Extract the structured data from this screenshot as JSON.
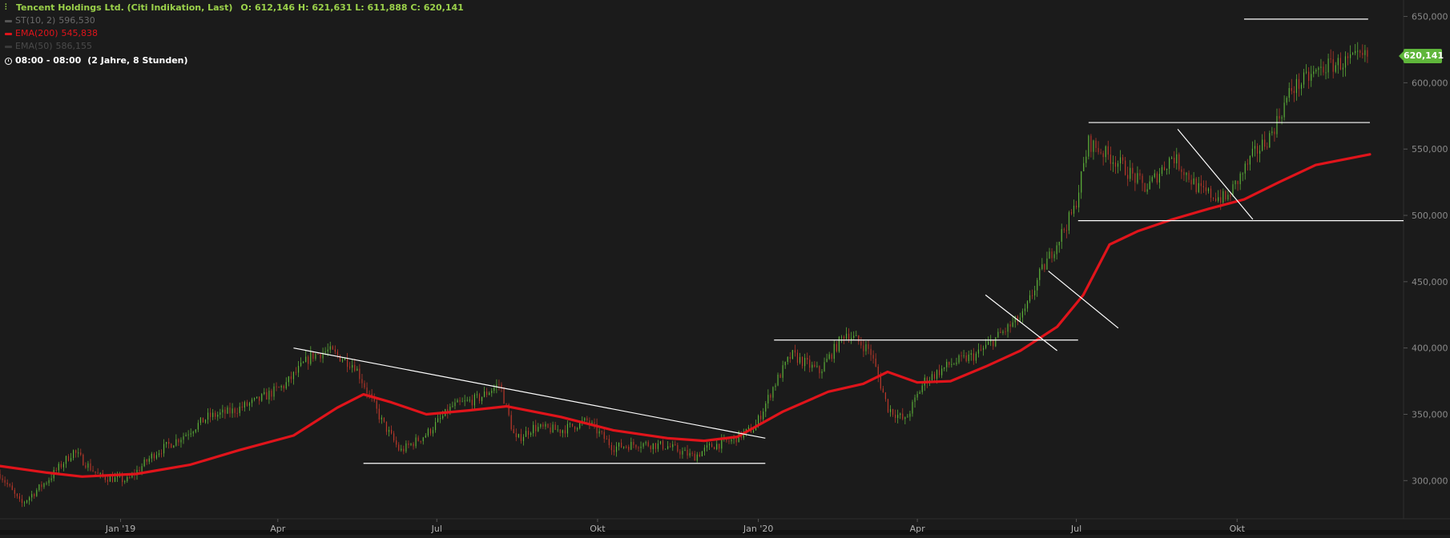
{
  "header": {
    "title": "Tencent Holdings Ltd. (Citi Indikation, Last)",
    "ohlc": "O: 612,146  H: 621,631  L: 611,888  C: 620,141",
    "st_label": "ST(10, 2)",
    "st_value": "596,530",
    "ema200_label": "EMA(200)",
    "ema200_value": "545,838",
    "ema50_label": "EMA(50)",
    "ema50_value": "586,155",
    "time_range": "08:00 - 08:00",
    "time_desc": "(2 Jahre, 8 Stunden)"
  },
  "colors": {
    "background": "#1b1b1b",
    "ema200": "#e0141b",
    "candle_up": "#5fb63b",
    "candle_down": "#c0392b",
    "trendline": "#ffffff",
    "last_price": "#5fb63b",
    "grid_axis": "#2c2c2c"
  },
  "last_price_label": "620,141",
  "chart_data": {
    "type": "line",
    "title": "Tencent Holdings Ltd. (Citi Indikation, Last)",
    "xlabel": "",
    "ylabel": "",
    "ylim": [
      270,
      660
    ],
    "x_ticks": [
      "Jan '19",
      "Apr",
      "Jul",
      "Okt",
      "Jan '20",
      "Apr",
      "Jul",
      "Okt"
    ],
    "x_tick_dates": [
      "2019-01-01",
      "2019-04-01",
      "2019-07-01",
      "2019-10-01",
      "2020-01-01",
      "2020-04-01",
      "2020-07-01",
      "2020-10-01"
    ],
    "y_ticks": [
      "300,000",
      "350,000",
      "400,000",
      "450,000",
      "500,000",
      "550,000",
      "600,000",
      "650,000"
    ],
    "y_tick_values": [
      300,
      350,
      400,
      450,
      500,
      550,
      600,
      650
    ],
    "x_range": [
      "2018-10-24",
      "2020-12-16"
    ],
    "grid": false,
    "series": [
      {
        "name": "Tencent Holdings Ltd.",
        "kind": "price",
        "points": [
          [
            "2018-10-24",
            305
          ],
          [
            "2018-11-05",
            282
          ],
          [
            "2018-11-20",
            300
          ],
          [
            "2018-12-05",
            322
          ],
          [
            "2018-12-20",
            303
          ],
          [
            "2019-01-05",
            300
          ],
          [
            "2019-01-20",
            320
          ],
          [
            "2019-02-05",
            333
          ],
          [
            "2019-02-20",
            348
          ],
          [
            "2019-03-05",
            352
          ],
          [
            "2019-03-20",
            360
          ],
          [
            "2019-04-05",
            372
          ],
          [
            "2019-04-20",
            394
          ],
          [
            "2019-04-30",
            398
          ],
          [
            "2019-05-15",
            387
          ],
          [
            "2019-05-30",
            346
          ],
          [
            "2019-06-10",
            322
          ],
          [
            "2019-06-25",
            335
          ],
          [
            "2019-07-10",
            356
          ],
          [
            "2019-07-25",
            362
          ],
          [
            "2019-08-06",
            373
          ],
          [
            "2019-08-15",
            330
          ],
          [
            "2019-08-25",
            340
          ],
          [
            "2019-09-10",
            338
          ],
          [
            "2019-09-25",
            345
          ],
          [
            "2019-10-10",
            325
          ],
          [
            "2019-10-25",
            328
          ],
          [
            "2019-11-10",
            326
          ],
          [
            "2019-11-25",
            318
          ],
          [
            "2019-12-05",
            326
          ],
          [
            "2019-12-16",
            330
          ],
          [
            "2019-12-30",
            340
          ],
          [
            "2020-01-10",
            372
          ],
          [
            "2020-01-20",
            395
          ],
          [
            "2020-02-05",
            382
          ],
          [
            "2020-02-20",
            412
          ],
          [
            "2020-03-05",
            398
          ],
          [
            "2020-03-15",
            355
          ],
          [
            "2020-03-25",
            345
          ],
          [
            "2020-04-05",
            375
          ],
          [
            "2020-04-20",
            388
          ],
          [
            "2020-05-05",
            395
          ],
          [
            "2020-05-20",
            412
          ],
          [
            "2020-06-01",
            425
          ],
          [
            "2020-06-10",
            455
          ],
          [
            "2020-06-20",
            480
          ],
          [
            "2020-06-30",
            505
          ],
          [
            "2020-07-08",
            555
          ],
          [
            "2020-07-25",
            540
          ],
          [
            "2020-08-10",
            520
          ],
          [
            "2020-08-25",
            545
          ],
          [
            "2020-09-10",
            518
          ],
          [
            "2020-09-25",
            512
          ],
          [
            "2020-10-10",
            545
          ],
          [
            "2020-10-20",
            560
          ],
          [
            "2020-11-01",
            595
          ],
          [
            "2020-11-20",
            612
          ],
          [
            "2020-12-16",
            620
          ]
        ]
      },
      {
        "name": "EMA(200)",
        "kind": "ema",
        "points": [
          [
            "2018-10-24",
            311
          ],
          [
            "2018-11-20",
            306
          ],
          [
            "2018-12-10",
            303
          ],
          [
            "2019-01-10",
            305
          ],
          [
            "2019-02-10",
            312
          ],
          [
            "2019-03-10",
            323
          ],
          [
            "2019-04-10",
            334
          ],
          [
            "2019-05-05",
            355
          ],
          [
            "2019-05-20",
            365
          ],
          [
            "2019-06-05",
            359
          ],
          [
            "2019-06-25",
            350
          ],
          [
            "2019-07-20",
            353
          ],
          [
            "2019-08-10",
            356
          ],
          [
            "2019-09-10",
            348
          ],
          [
            "2019-10-10",
            338
          ],
          [
            "2019-11-10",
            332
          ],
          [
            "2019-12-01",
            330
          ],
          [
            "2019-12-20",
            333
          ],
          [
            "2020-01-15",
            352
          ],
          [
            "2020-02-10",
            367
          ],
          [
            "2020-03-01",
            373
          ],
          [
            "2020-03-15",
            382
          ],
          [
            "2020-04-01",
            374
          ],
          [
            "2020-04-20",
            375
          ],
          [
            "2020-05-10",
            386
          ],
          [
            "2020-05-30",
            398
          ],
          [
            "2020-06-20",
            416
          ],
          [
            "2020-07-05",
            440
          ],
          [
            "2020-07-20",
            478
          ],
          [
            "2020-08-05",
            488
          ],
          [
            "2020-08-25",
            497
          ],
          [
            "2020-09-15",
            505
          ],
          [
            "2020-10-05",
            512
          ],
          [
            "2020-10-25",
            525
          ],
          [
            "2020-11-15",
            538
          ],
          [
            "2020-12-16",
            546
          ]
        ]
      }
    ],
    "annotations": {
      "trendlines": [
        {
          "from": [
            "2019-04-10",
            400
          ],
          "to": [
            "2020-01-05",
            332
          ]
        },
        {
          "from": [
            "2019-05-20",
            313
          ],
          "to": [
            "2020-01-05",
            313
          ]
        },
        {
          "from": [
            "2020-01-10",
            406
          ],
          "to": [
            "2020-07-02",
            406
          ]
        },
        {
          "from": [
            "2020-05-10",
            440
          ],
          "to": [
            "2020-06-20",
            398
          ]
        },
        {
          "from": [
            "2020-06-15",
            458
          ],
          "to": [
            "2020-07-25",
            415
          ]
        },
        {
          "from": [
            "2020-07-02",
            496
          ],
          "to": [
            "2021-01-20",
            496
          ]
        },
        {
          "from": [
            "2020-07-08",
            570
          ],
          "to": [
            "2020-12-16",
            570
          ]
        },
        {
          "from": [
            "2020-08-28",
            565
          ],
          "to": [
            "2020-10-10",
            497
          ]
        },
        {
          "from": [
            "2020-10-05",
            648
          ],
          "to": [
            "2020-12-15",
            648
          ]
        }
      ]
    }
  }
}
